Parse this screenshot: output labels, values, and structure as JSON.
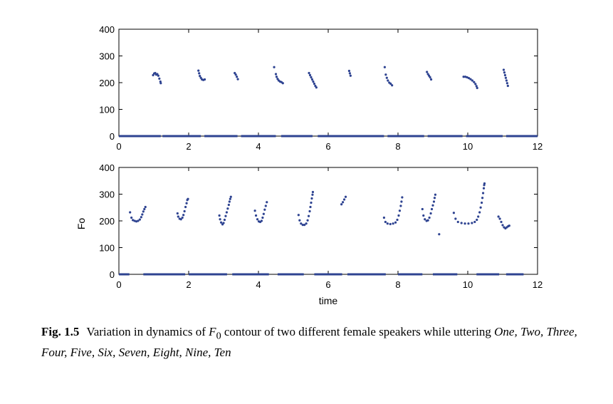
{
  "chart_data": [
    {
      "type": "scatter",
      "xlabel": "",
      "ylabel": "",
      "xlim": [
        0,
        12
      ],
      "ylim": [
        0,
        400
      ],
      "xticks": [
        "0",
        "2",
        "4",
        "6",
        "8",
        "10",
        "12"
      ],
      "yticks": [
        "0",
        "100",
        "200",
        "300",
        "400"
      ],
      "color": "#2E4391",
      "zero_runs": [
        [
          0,
          1.2
        ],
        [
          1.25,
          2.35
        ],
        [
          2.45,
          3.4
        ],
        [
          3.5,
          4.5
        ],
        [
          4.65,
          5.55
        ],
        [
          5.7,
          7.6
        ],
        [
          7.7,
          8.75
        ],
        [
          8.85,
          9.85
        ],
        [
          9.95,
          11.0
        ],
        [
          11.1,
          12.0
        ]
      ],
      "contours": [
        [
          [
            0.98,
            228
          ],
          [
            1.01,
            234
          ],
          [
            1.04,
            236
          ],
          [
            1.07,
            230
          ],
          [
            1.1,
            232
          ],
          [
            1.13,
            226
          ],
          [
            1.16,
            215
          ],
          [
            1.19,
            204
          ],
          [
            1.2,
            198
          ]
        ],
        [
          [
            2.28,
            245
          ],
          [
            2.3,
            235
          ],
          [
            2.32,
            225
          ],
          [
            2.35,
            218
          ],
          [
            2.38,
            212
          ],
          [
            2.42,
            210
          ],
          [
            2.46,
            212
          ]
        ],
        [
          [
            3.32,
            236
          ],
          [
            3.35,
            230
          ],
          [
            3.38,
            222
          ],
          [
            3.41,
            213
          ]
        ],
        [
          [
            4.45,
            258
          ]
        ],
        [
          [
            4.5,
            232
          ],
          [
            4.52,
            222
          ],
          [
            4.55,
            214
          ],
          [
            4.58,
            208
          ],
          [
            4.62,
            204
          ],
          [
            4.66,
            202
          ],
          [
            4.7,
            198
          ]
        ],
        [
          [
            5.45,
            236
          ],
          [
            5.48,
            228
          ],
          [
            5.51,
            220
          ],
          [
            5.54,
            212
          ],
          [
            5.57,
            204
          ],
          [
            5.6,
            196
          ],
          [
            5.63,
            188
          ],
          [
            5.66,
            182
          ]
        ],
        [
          [
            6.6,
            244
          ],
          [
            6.62,
            235
          ],
          [
            6.64,
            226
          ]
        ],
        [
          [
            7.62,
            258
          ]
        ],
        [
          [
            7.65,
            230
          ],
          [
            7.68,
            218
          ],
          [
            7.71,
            208
          ],
          [
            7.75,
            200
          ],
          [
            7.79,
            196
          ],
          [
            7.83,
            190
          ]
        ],
        [
          [
            8.83,
            240
          ],
          [
            8.86,
            232
          ],
          [
            8.89,
            226
          ],
          [
            8.92,
            220
          ],
          [
            8.95,
            212
          ]
        ],
        [
          [
            9.88,
            222
          ],
          [
            9.93,
            222
          ],
          [
            9.98,
            220
          ],
          [
            10.03,
            217
          ],
          [
            10.08,
            213
          ],
          [
            10.13,
            208
          ],
          [
            10.18,
            202
          ],
          [
            10.22,
            195
          ],
          [
            10.25,
            187
          ],
          [
            10.27,
            180
          ]
        ],
        [
          [
            11.03,
            248
          ],
          [
            11.05,
            238
          ],
          [
            11.07,
            228
          ],
          [
            11.09,
            218
          ],
          [
            11.11,
            208
          ],
          [
            11.13,
            198
          ],
          [
            11.15,
            188
          ]
        ]
      ]
    },
    {
      "type": "scatter",
      "xlabel": "time",
      "ylabel": "Fo",
      "xlim": [
        0,
        12
      ],
      "ylim": [
        0,
        400
      ],
      "xticks": [
        "0",
        "2",
        "4",
        "6",
        "8",
        "10",
        "12"
      ],
      "yticks": [
        "0",
        "100",
        "200",
        "300",
        "400"
      ],
      "color": "#2E4391",
      "zero_runs": [
        [
          0,
          0.3
        ],
        [
          0.7,
          1.9
        ],
        [
          2.0,
          3.1
        ],
        [
          3.25,
          4.3
        ],
        [
          4.55,
          5.3
        ],
        [
          5.6,
          6.4
        ],
        [
          6.55,
          7.65
        ],
        [
          8.0,
          8.7
        ],
        [
          9.0,
          9.7
        ],
        [
          10.25,
          10.9
        ],
        [
          11.1,
          11.6
        ]
      ],
      "contours": [
        [
          [
            0.32,
            232
          ],
          [
            0.36,
            212
          ],
          [
            0.4,
            203
          ],
          [
            0.45,
            200
          ],
          [
            0.5,
            198
          ],
          [
            0.55,
            200
          ],
          [
            0.6,
            205
          ],
          [
            0.64,
            214
          ],
          [
            0.67,
            224
          ],
          [
            0.7,
            235
          ],
          [
            0.73,
            244
          ],
          [
            0.76,
            252
          ]
        ],
        [
          [
            1.68,
            228
          ],
          [
            1.7,
            216
          ],
          [
            1.74,
            208
          ],
          [
            1.78,
            206
          ],
          [
            1.82,
            212
          ],
          [
            1.85,
            222
          ],
          [
            1.88,
            236
          ],
          [
            1.91,
            252
          ],
          [
            1.94,
            266
          ],
          [
            1.96,
            278
          ],
          [
            1.98,
            282
          ]
        ],
        [
          [
            2.88,
            220
          ],
          [
            2.9,
            206
          ],
          [
            2.93,
            194
          ],
          [
            2.97,
            187
          ],
          [
            3.0,
            192
          ],
          [
            3.03,
            204
          ],
          [
            3.06,
            218
          ],
          [
            3.09,
            232
          ],
          [
            3.12,
            246
          ],
          [
            3.15,
            260
          ],
          [
            3.17,
            272
          ],
          [
            3.19,
            282
          ],
          [
            3.21,
            290
          ]
        ],
        [
          [
            3.9,
            238
          ],
          [
            3.93,
            220
          ],
          [
            3.97,
            206
          ],
          [
            4.01,
            198
          ],
          [
            4.05,
            196
          ],
          [
            4.09,
            200
          ],
          [
            4.12,
            212
          ],
          [
            4.15,
            226
          ],
          [
            4.18,
            242
          ],
          [
            4.21,
            256
          ],
          [
            4.24,
            270
          ]
        ],
        [
          [
            5.15,
            222
          ],
          [
            5.18,
            202
          ],
          [
            5.22,
            190
          ],
          [
            5.27,
            185
          ],
          [
            5.32,
            185
          ],
          [
            5.37,
            190
          ],
          [
            5.41,
            202
          ],
          [
            5.44,
            218
          ],
          [
            5.47,
            236
          ],
          [
            5.49,
            252
          ],
          [
            5.51,
            268
          ],
          [
            5.53,
            284
          ],
          [
            5.55,
            298
          ],
          [
            5.56,
            308
          ]
        ],
        [
          [
            6.38,
            262
          ],
          [
            6.42,
            270
          ],
          [
            6.46,
            280
          ],
          [
            6.5,
            290
          ]
        ],
        [
          [
            7.6,
            212
          ],
          [
            7.64,
            196
          ],
          [
            7.7,
            190
          ],
          [
            7.78,
            188
          ],
          [
            7.86,
            190
          ],
          [
            7.93,
            194
          ],
          [
            7.98,
            204
          ],
          [
            8.02,
            220
          ],
          [
            8.05,
            238
          ],
          [
            8.08,
            256
          ],
          [
            8.1,
            272
          ],
          [
            8.12,
            288
          ]
        ],
        [
          [
            8.7,
            244
          ],
          [
            8.73,
            220
          ],
          [
            8.77,
            206
          ],
          [
            8.82,
            200
          ],
          [
            8.86,
            202
          ],
          [
            8.9,
            212
          ],
          [
            8.94,
            228
          ],
          [
            8.97,
            244
          ],
          [
            9.0,
            258
          ],
          [
            9.03,
            272
          ],
          [
            9.05,
            286
          ],
          [
            9.07,
            298
          ]
        ],
        [
          [
            9.18,
            150
          ]
        ],
        [
          [
            9.6,
            230
          ],
          [
            9.65,
            208
          ],
          [
            9.72,
            196
          ],
          [
            9.82,
            192
          ],
          [
            9.92,
            190
          ],
          [
            10.02,
            190
          ],
          [
            10.12,
            192
          ],
          [
            10.2,
            196
          ],
          [
            10.26,
            204
          ],
          [
            10.3,
            216
          ],
          [
            10.34,
            232
          ],
          [
            10.37,
            250
          ],
          [
            10.4,
            268
          ],
          [
            10.42,
            286
          ],
          [
            10.44,
            304
          ],
          [
            10.46,
            322
          ],
          [
            10.47,
            334
          ],
          [
            10.48,
            340
          ]
        ],
        [
          [
            10.88,
            216
          ],
          [
            10.92,
            208
          ],
          [
            10.96,
            196
          ],
          [
            11.0,
            184
          ],
          [
            11.04,
            176
          ],
          [
            11.08,
            172
          ],
          [
            11.12,
            176
          ],
          [
            11.16,
            180
          ],
          [
            11.19,
            182
          ]
        ]
      ]
    }
  ],
  "caption": {
    "label": "Fig. 1.5",
    "text_prefix": "Variation in dynamics of ",
    "f_base": "F",
    "f_sub": "0",
    "text_suffix": " contour of two different female speakers while uttering ",
    "words": "One, Two, Three, Four, Five, Six, Seven, Eight, Nine, Ten"
  }
}
